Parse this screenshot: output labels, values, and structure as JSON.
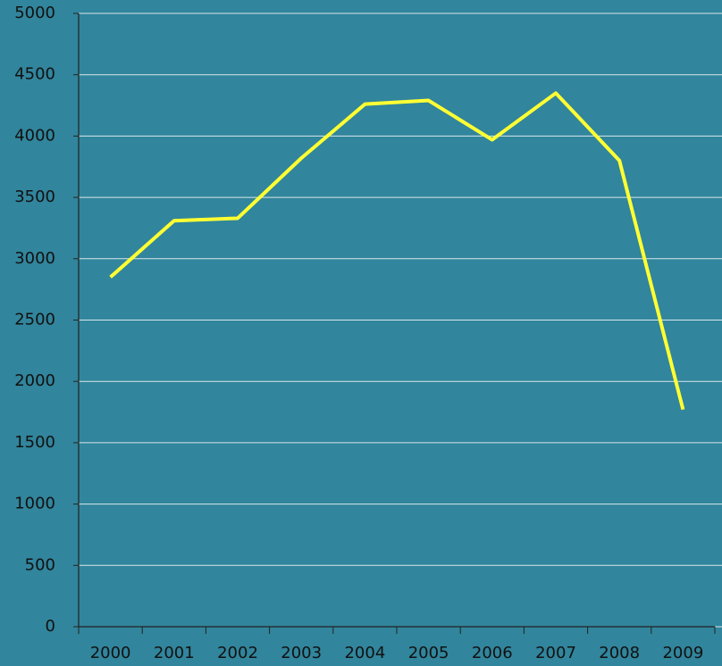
{
  "chart_data": {
    "type": "line",
    "categories": [
      "2000",
      "2001",
      "2002",
      "2003",
      "2004",
      "2005",
      "2006",
      "2007",
      "2008",
      "2009"
    ],
    "series": [
      {
        "color": "#ffff33",
        "values": [
          2850,
          3310,
          3330,
          3820,
          4260,
          4290,
          3970,
          4350,
          3800,
          1770
        ]
      }
    ],
    "ylim": [
      0,
      5000
    ],
    "yticks": [
      0,
      500,
      1000,
      1500,
      2000,
      2500,
      3000,
      3500,
      4000,
      4500,
      5000
    ],
    "grid": true
  }
}
